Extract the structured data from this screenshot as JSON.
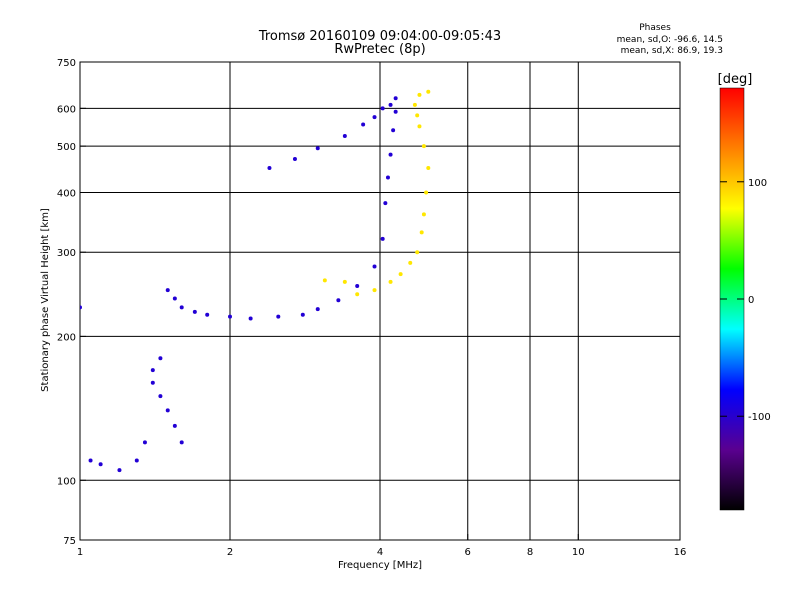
{
  "chart_data": {
    "type": "scatter",
    "title": "Tromsø 20160109 09:04:00-09:05:43",
    "subtitle": "RwPretec (8p)",
    "xlabel": "Frequency [MHz]",
    "ylabel": "Stationary phase Virtual Height [km]",
    "x_scale": "log",
    "y_scale": "log",
    "xlim": [
      1,
      16
    ],
    "ylim": [
      75,
      750
    ],
    "x_ticks": [
      1,
      2,
      4,
      6,
      8,
      10,
      16
    ],
    "y_ticks": [
      75,
      100,
      200,
      300,
      400,
      500,
      600,
      750
    ],
    "grid": true,
    "stats": {
      "heading": "Phases",
      "o_line": "mean, sd,O: -96.6, 14.5",
      "x_line": "mean, sd,X:  86.9, 19.3"
    },
    "colorbar": {
      "label": "[deg]",
      "range": [
        -180,
        180
      ],
      "ticks": [
        -100,
        0,
        100
      ],
      "stops": [
        "#000000",
        "#5a0090",
        "#0000ff",
        "#00ffff",
        "#00ff00",
        "#ffff00",
        "#ff8000",
        "#ff0000"
      ]
    },
    "series": [
      {
        "name": "O",
        "phase_deg": -96.6,
        "x": [
          1.0,
          1.05,
          1.1,
          1.2,
          1.3,
          1.35,
          1.4,
          1.45,
          1.5,
          1.55,
          1.6,
          1.7,
          1.8,
          2.0,
          2.2,
          2.5,
          2.8,
          3.0,
          3.3,
          3.6,
          3.9,
          4.05,
          4.1,
          4.15,
          4.2,
          4.25,
          4.3,
          2.4,
          2.7,
          3.0,
          3.4,
          3.7,
          3.9,
          4.05,
          4.2,
          4.3,
          1.4,
          1.45,
          1.5,
          1.55,
          1.6
        ],
        "y": [
          230,
          110,
          108,
          105,
          110,
          120,
          160,
          180,
          250,
          240,
          230,
          225,
          222,
          220,
          218,
          220,
          222,
          228,
          238,
          255,
          280,
          320,
          380,
          430,
          480,
          540,
          590,
          450,
          470,
          495,
          525,
          555,
          575,
          600,
          610,
          630,
          170,
          150,
          140,
          130,
          120
        ]
      },
      {
        "name": "X",
        "phase_deg": 86.9,
        "x": [
          3.6,
          3.9,
          4.2,
          4.4,
          4.6,
          4.75,
          4.85,
          4.9,
          4.95,
          5.0,
          4.9,
          4.8,
          4.75,
          4.7,
          4.8,
          5.0,
          3.1,
          3.4
        ],
        "y": [
          245,
          250,
          260,
          270,
          285,
          300,
          330,
          360,
          400,
          450,
          500,
          550,
          580,
          610,
          640,
          650,
          262,
          260
        ]
      }
    ]
  }
}
